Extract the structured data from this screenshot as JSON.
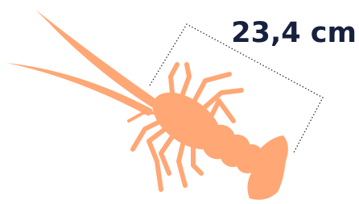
{
  "measurement": {
    "label": "23,4 cm"
  }
}
